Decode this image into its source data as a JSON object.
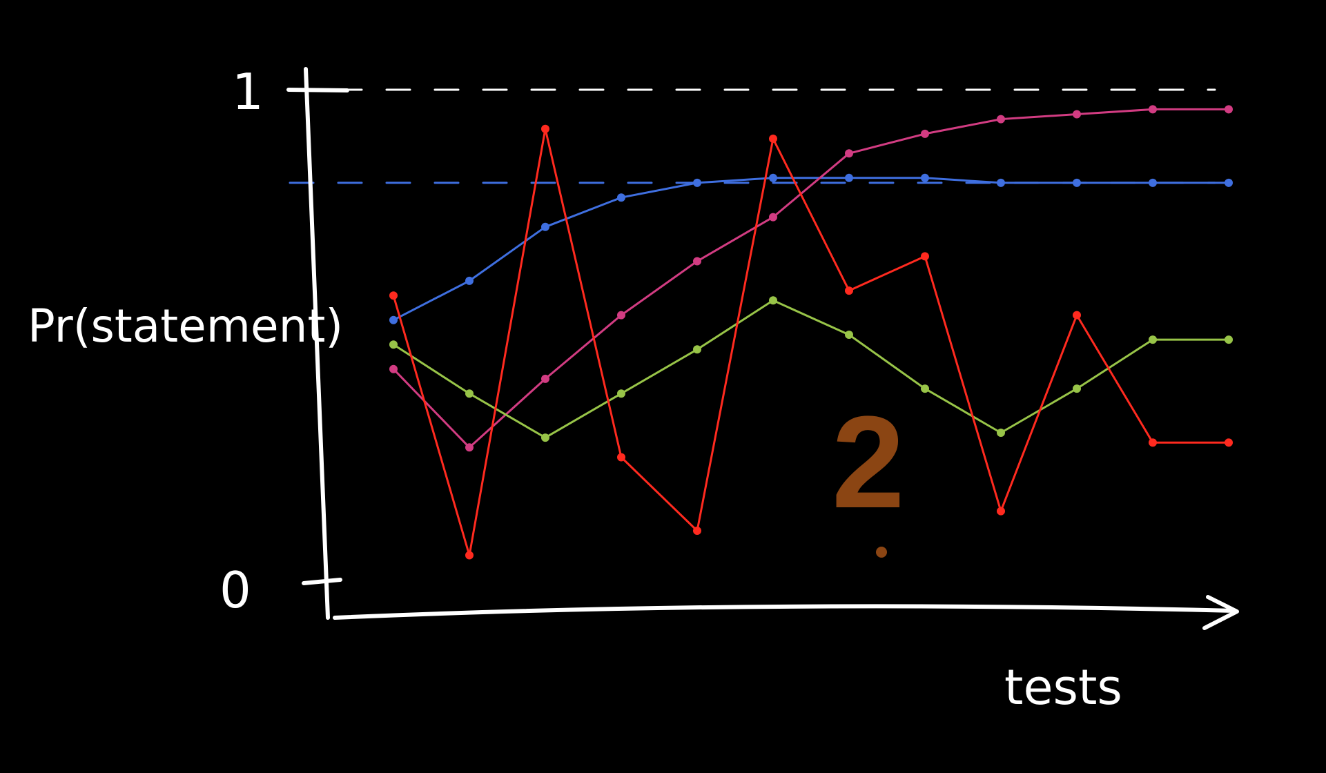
{
  "chart_data": {
    "type": "line",
    "title": "",
    "xlabel": "tests",
    "ylabel": "Pr(statement)",
    "y_ticks": [
      "0",
      "1"
    ],
    "ylim": [
      0,
      1
    ],
    "x": [
      1,
      2,
      3,
      4,
      5,
      6,
      7,
      8,
      9,
      10,
      11,
      12
    ],
    "grid": false,
    "legend": "none",
    "reference_lines": [
      {
        "y": 1.0,
        "color": "#ffffff",
        "style": "dashed"
      },
      {
        "y": 0.81,
        "color": "#3f6fe0",
        "style": "dashed"
      }
    ],
    "series": [
      {
        "color": "#3f6fe0",
        "values": [
          0.53,
          0.61,
          0.72,
          0.78,
          0.81,
          0.82,
          0.82,
          0.82,
          0.81,
          0.81,
          0.81,
          0.81
        ]
      },
      {
        "color": "#d23c82",
        "values": [
          0.43,
          0.27,
          0.41,
          0.54,
          0.65,
          0.74,
          0.87,
          0.91,
          0.94,
          0.95,
          0.96,
          0.96
        ]
      },
      {
        "color": "#98c448",
        "values": [
          0.48,
          0.38,
          0.29,
          0.38,
          0.47,
          0.57,
          0.5,
          0.39,
          0.3,
          0.39,
          0.49,
          0.49
        ]
      },
      {
        "color": "#ff2a1f",
        "values": [
          0.58,
          0.05,
          0.92,
          0.25,
          0.1,
          0.9,
          0.59,
          0.66,
          0.14,
          0.54,
          0.28,
          0.28
        ]
      }
    ],
    "annotation": {
      "text": "2",
      "color": "#8b4513"
    }
  }
}
